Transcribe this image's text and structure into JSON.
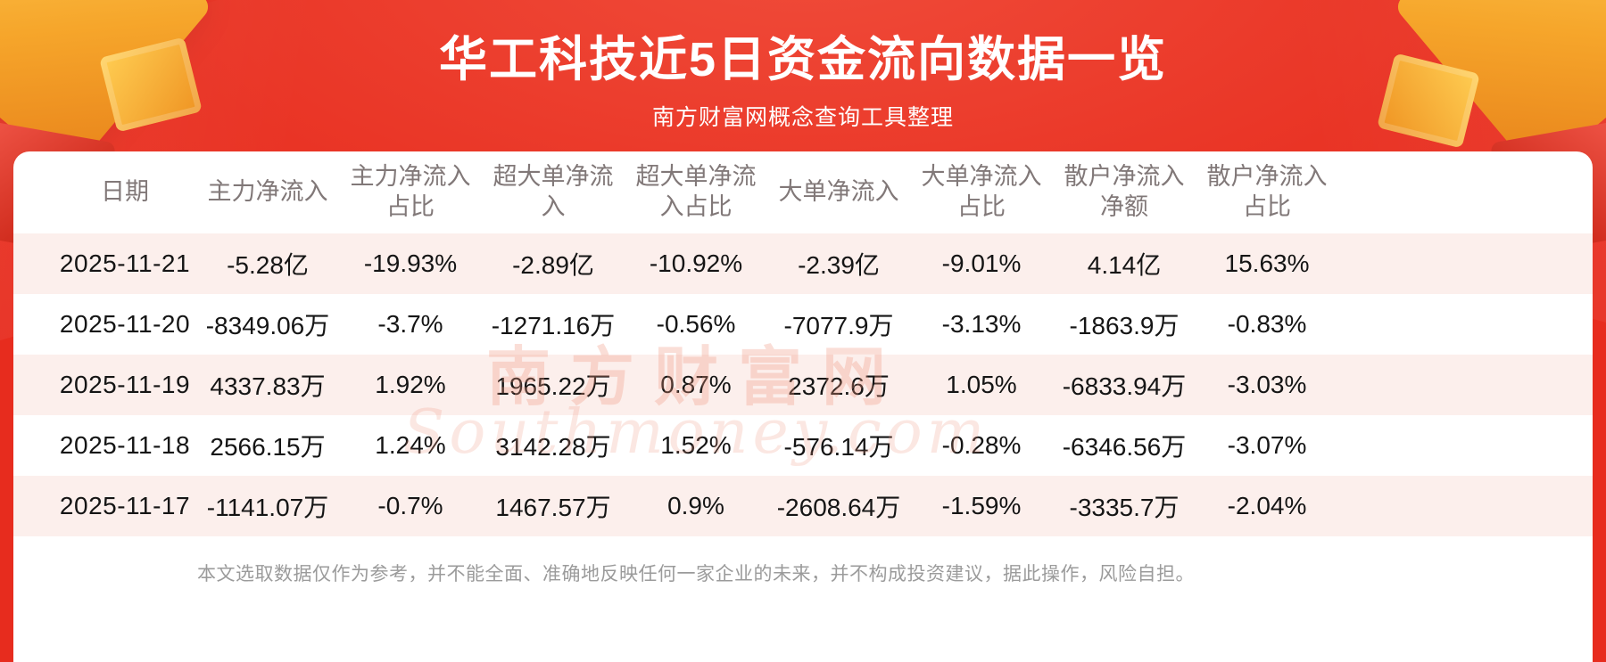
{
  "header": {
    "title": "华工科技近5日资金流向数据一览",
    "subtitle": "南方财富网概念查询工具整理"
  },
  "chart_data": {
    "type": "table",
    "title": "华工科技近5日资金流向数据一览",
    "columns": [
      "日期",
      "主力净流入",
      "主力净流入占比",
      "超大单净流入",
      "超大单净流入占比",
      "大单净流入",
      "大单净流入占比",
      "散户净流入净额",
      "散户净流入占比"
    ],
    "rows": [
      [
        "2025-11-21",
        "-5.28亿",
        "-19.93%",
        "-2.89亿",
        "-10.92%",
        "-2.39亿",
        "-9.01%",
        "4.14亿",
        "15.63%"
      ],
      [
        "2025-11-20",
        "-8349.06万",
        "-3.7%",
        "-1271.16万",
        "-0.56%",
        "-7077.9万",
        "-3.13%",
        "-1863.9万",
        "-0.83%"
      ],
      [
        "2025-11-19",
        "4337.83万",
        "1.92%",
        "1965.22万",
        "0.87%",
        "2372.6万",
        "1.05%",
        "-6833.94万",
        "-3.03%"
      ],
      [
        "2025-11-18",
        "2566.15万",
        "1.24%",
        "3142.28万",
        "1.52%",
        "-576.14万",
        "-0.28%",
        "-6346.56万",
        "-3.07%"
      ],
      [
        "2025-11-17",
        "-1141.07万",
        "-0.7%",
        "1467.57万",
        "0.9%",
        "-2608.64万",
        "-1.59%",
        "-3335.7万",
        "-2.04%"
      ]
    ]
  },
  "watermark": {
    "cn": "南方财富网",
    "en": "Southmoney.com"
  },
  "footer": {
    "disclaimer": "本文选取数据仅作为参考，并不能全面、准确地反映任何一家企业的未来，并不构成投资建议，据此操作，风险自担。"
  },
  "colors": {
    "background_red": "#e93425",
    "row_pink": "#fcefec",
    "title_white": "#ffffff",
    "header_gray": "#817878",
    "text_dark": "#151515",
    "disclaimer_gray": "#9b9b9b",
    "gold_accent": "#f6a62b",
    "watermark_peach": "#f0957d"
  }
}
